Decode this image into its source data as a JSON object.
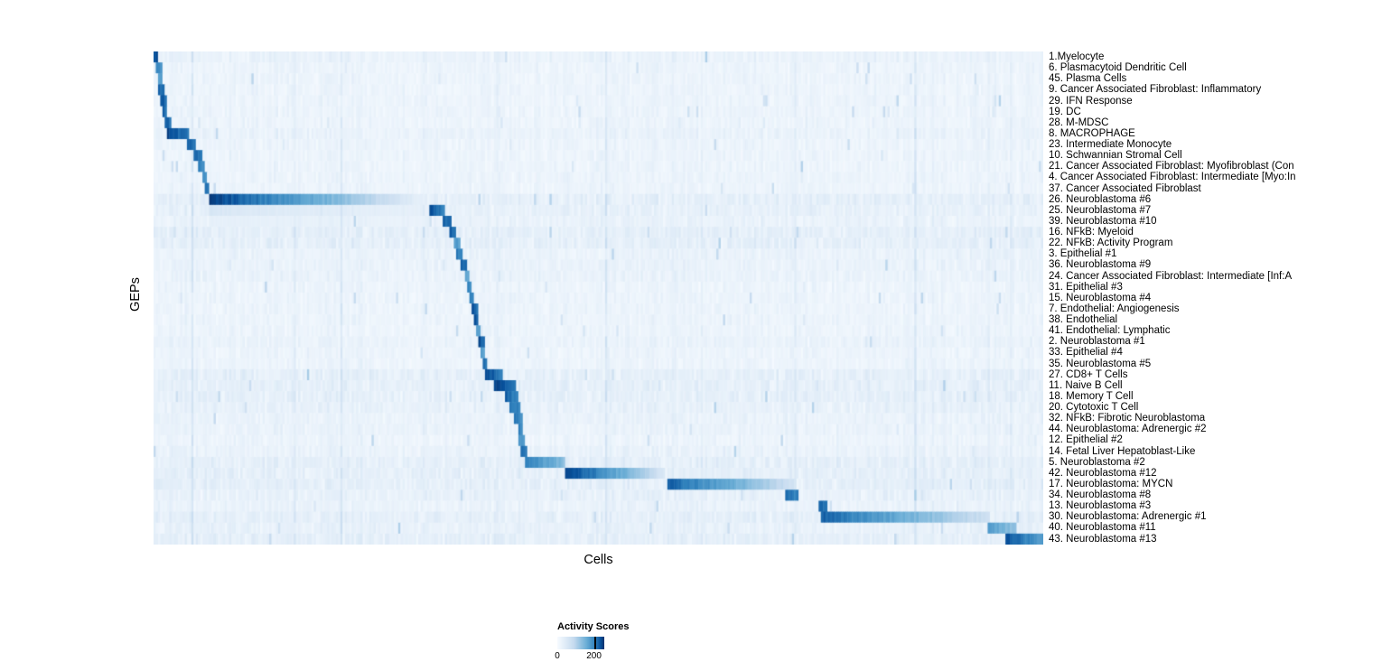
{
  "chart_data": {
    "type": "heatmap",
    "title": "",
    "xlabel": "Cells",
    "ylabel": "GEPs",
    "legend": {
      "title": "Activity Scores",
      "ticks": [
        "0",
        "200"
      ]
    },
    "value_range": [
      0,
      250
    ],
    "colormap": [
      "#f7fbff",
      "#c6dbef",
      "#6baed6",
      "#3182bd",
      "#08519c",
      "#08306b"
    ],
    "rows": [
      {
        "label": "1.Myelocyte",
        "block": [
          0.0,
          0.005
        ],
        "peak": 0.9,
        "fade": 0.1,
        "tint": 0.03
      },
      {
        "label": "6. Plasmacytoid Dendritic Cell",
        "block": [
          0.002,
          0.008
        ],
        "peak": 0.6,
        "fade": 0.1,
        "tint": 0.02
      },
      {
        "label": "45. Plasma Cells",
        "block": [
          0.004,
          0.009
        ],
        "peak": 0.55,
        "fade": 0.1,
        "tint": 0.02
      },
      {
        "label": "9. Cancer Associated Fibroblast: Inflammatory",
        "block": [
          0.005,
          0.011
        ],
        "peak": 0.8,
        "fade": 0.1,
        "tint": 0.02
      },
      {
        "label": "29. IFN Response",
        "block": [
          0.006,
          0.013
        ],
        "peak": 0.9,
        "fade": 0.2,
        "tint": 0.02
      },
      {
        "label": "19. DC",
        "block": [
          0.008,
          0.015
        ],
        "peak": 0.85,
        "fade": 0.2,
        "tint": 0.02
      },
      {
        "label": "28. M-MDSC",
        "block": [
          0.011,
          0.018
        ],
        "peak": 0.9,
        "fade": 0.2,
        "tint": 0.02
      },
      {
        "label": "8. MACROPHAGE",
        "block": [
          0.014,
          0.04
        ],
        "peak": 1.0,
        "fade": 0.35,
        "tint": 0.03
      },
      {
        "label": "23. Intermediate Monocyte",
        "block": [
          0.036,
          0.047
        ],
        "peak": 0.85,
        "fade": 0.2,
        "tint": 0.02
      },
      {
        "label": "10. Schwannian Stromal Cell",
        "block": [
          0.045,
          0.053
        ],
        "peak": 0.8,
        "fade": 0.2,
        "tint": 0.02
      },
      {
        "label": "21. Cancer Associated Fibroblast: Myofibroblast (Con",
        "block": [
          0.05,
          0.056
        ],
        "peak": 0.65,
        "fade": 0.1,
        "tint": 0.02
      },
      {
        "label": "4. Cancer Associated Fibroblast: Intermediate [Myo:In",
        "block": [
          0.053,
          0.059
        ],
        "peak": 0.6,
        "fade": 0.1,
        "tint": 0.02
      },
      {
        "label": "37. Cancer Associated Fibroblast",
        "block": [
          0.056,
          0.062
        ],
        "peak": 0.8,
        "fade": 0.1,
        "tint": 0.02
      },
      {
        "label": "26. Neuroblastoma #6",
        "block": [
          0.062,
          0.315
        ],
        "peak": 1.0,
        "fade": 0.97,
        "tint": 0.05
      },
      {
        "label": "25. Neuroblastoma #7",
        "block": [
          0.31,
          0.327
        ],
        "peak": 0.95,
        "fade": 0.4,
        "tint": 0.04,
        "extra": [
          [
            0.062,
            0.31,
            0.14,
            0.5
          ]
        ]
      },
      {
        "label": "39. Neuroblastoma #10",
        "block": [
          0.323,
          0.335
        ],
        "peak": 0.85,
        "fade": 0.2,
        "tint": 0.03,
        "extra": [
          [
            0.062,
            0.31,
            0.08,
            0.3
          ]
        ]
      },
      {
        "label": "16. NFkB: Myeloid",
        "block": [
          0.331,
          0.34
        ],
        "peak": 0.85,
        "fade": 0.2,
        "tint": 0.05
      },
      {
        "label": "22. NFkB: Activity Program",
        "block": [
          0.336,
          0.343
        ],
        "peak": 0.55,
        "fade": 0.1,
        "tint": 0.05
      },
      {
        "label": "3. Epithelial #1",
        "block": [
          0.34,
          0.347
        ],
        "peak": 0.7,
        "fade": 0.1,
        "tint": 0.03
      },
      {
        "label": "36. Neuroblastoma #9",
        "block": [
          0.344,
          0.352
        ],
        "peak": 0.85,
        "fade": 0.2,
        "tint": 0.03
      },
      {
        "label": "24. Cancer Associated Fibroblast: Intermediate [Inf:A",
        "block": [
          0.348,
          0.354
        ],
        "peak": 0.5,
        "fade": 0.1,
        "tint": 0.03
      },
      {
        "label": "31. Epithelial #3",
        "block": [
          0.351,
          0.357
        ],
        "peak": 0.65,
        "fade": 0.1,
        "tint": 0.02
      },
      {
        "label": "15. Neuroblastoma #4",
        "block": [
          0.354,
          0.36
        ],
        "peak": 0.7,
        "fade": 0.1,
        "tint": 0.02
      },
      {
        "label": "7. Endothelial: Angiogenesis",
        "block": [
          0.356,
          0.363
        ],
        "peak": 0.95,
        "fade": 0.2,
        "tint": 0.02
      },
      {
        "label": "38. Endothelial",
        "block": [
          0.359,
          0.365
        ],
        "peak": 0.9,
        "fade": 0.2,
        "tint": 0.02
      },
      {
        "label": "41. Endothelial: Lymphatic",
        "block": [
          0.362,
          0.367
        ],
        "peak": 0.55,
        "fade": 0.1,
        "tint": 0.02
      },
      {
        "label": "2. Neuroblastoma #1",
        "block": [
          0.363,
          0.371
        ],
        "peak": 0.95,
        "fade": 0.2,
        "tint": 0.03
      },
      {
        "label": "33. Epithelial #4",
        "block": [
          0.367,
          0.372
        ],
        "peak": 0.55,
        "fade": 0.1,
        "tint": 0.02
      },
      {
        "label": "35. Neuroblastoma #5",
        "block": [
          0.369,
          0.375
        ],
        "peak": 0.75,
        "fade": 0.1,
        "tint": 0.02
      },
      {
        "label": "27. CD8+ T Cells",
        "block": [
          0.372,
          0.392
        ],
        "peak": 0.95,
        "fade": 0.3,
        "tint": 0.05
      },
      {
        "label": "11. Naive B Cell",
        "block": [
          0.382,
          0.406
        ],
        "peak": 1.0,
        "fade": 0.3,
        "tint": 0.05
      },
      {
        "label": "18. Memory T Cell",
        "block": [
          0.394,
          0.408
        ],
        "peak": 0.8,
        "fade": 0.2,
        "tint": 0.05
      },
      {
        "label": "20. Cytotoxic T Cell",
        "block": [
          0.399,
          0.411
        ],
        "peak": 0.75,
        "fade": 0.2,
        "tint": 0.04
      },
      {
        "label": "32. NFkB: Fibrotic Neuroblastoma",
        "block": [
          0.404,
          0.413
        ],
        "peak": 0.75,
        "fade": 0.2,
        "tint": 0.03
      },
      {
        "label": "44. Neuroblastoma: Adrenergic #2",
        "block": [
          0.408,
          0.415
        ],
        "peak": 0.65,
        "fade": 0.1,
        "tint": 0.03
      },
      {
        "label": "12. Epithelial #2",
        "block": [
          0.41,
          0.416
        ],
        "peak": 0.55,
        "fade": 0.1,
        "tint": 0.02
      },
      {
        "label": "14. Fetal Liver Hepatoblast-Like",
        "block": [
          0.412,
          0.418
        ],
        "peak": 0.8,
        "fade": 0.1,
        "tint": 0.03
      },
      {
        "label": "5. Neuroblastoma #2",
        "block": [
          0.416,
          0.462
        ],
        "peak": 0.7,
        "fade": 0.5,
        "tint": 0.05
      },
      {
        "label": "42. Neuroblastoma #12",
        "block": [
          0.462,
          0.575
        ],
        "peak": 1.0,
        "fade": 0.88,
        "tint": 0.05
      },
      {
        "label": "17. Neuroblastoma: MYCN",
        "block": [
          0.576,
          0.718
        ],
        "peak": 0.85,
        "fade": 0.8,
        "tint": 0.05
      },
      {
        "label": "34. Neuroblastoma #8",
        "block": [
          0.71,
          0.723
        ],
        "peak": 0.8,
        "fade": 0.2,
        "tint": 0.04
      },
      {
        "label": "13. Neuroblastoma #3",
        "block": [
          0.747,
          0.756
        ],
        "peak": 0.85,
        "fade": 0.2,
        "tint": 0.03
      },
      {
        "label": "30. Neuroblastoma: Adrenergic #1",
        "block": [
          0.75,
          0.94
        ],
        "peak": 0.8,
        "fade": 0.78,
        "tint": 0.05
      },
      {
        "label": "40. Neuroblastoma #11",
        "block": [
          0.937,
          0.968
        ],
        "peak": 0.55,
        "fade": 0.4,
        "tint": 0.04
      },
      {
        "label": "43. Neuroblastoma #13",
        "block": [
          0.956,
          1.0
        ],
        "peak": 0.9,
        "fade": 0.45,
        "tint": 0.05
      }
    ]
  }
}
